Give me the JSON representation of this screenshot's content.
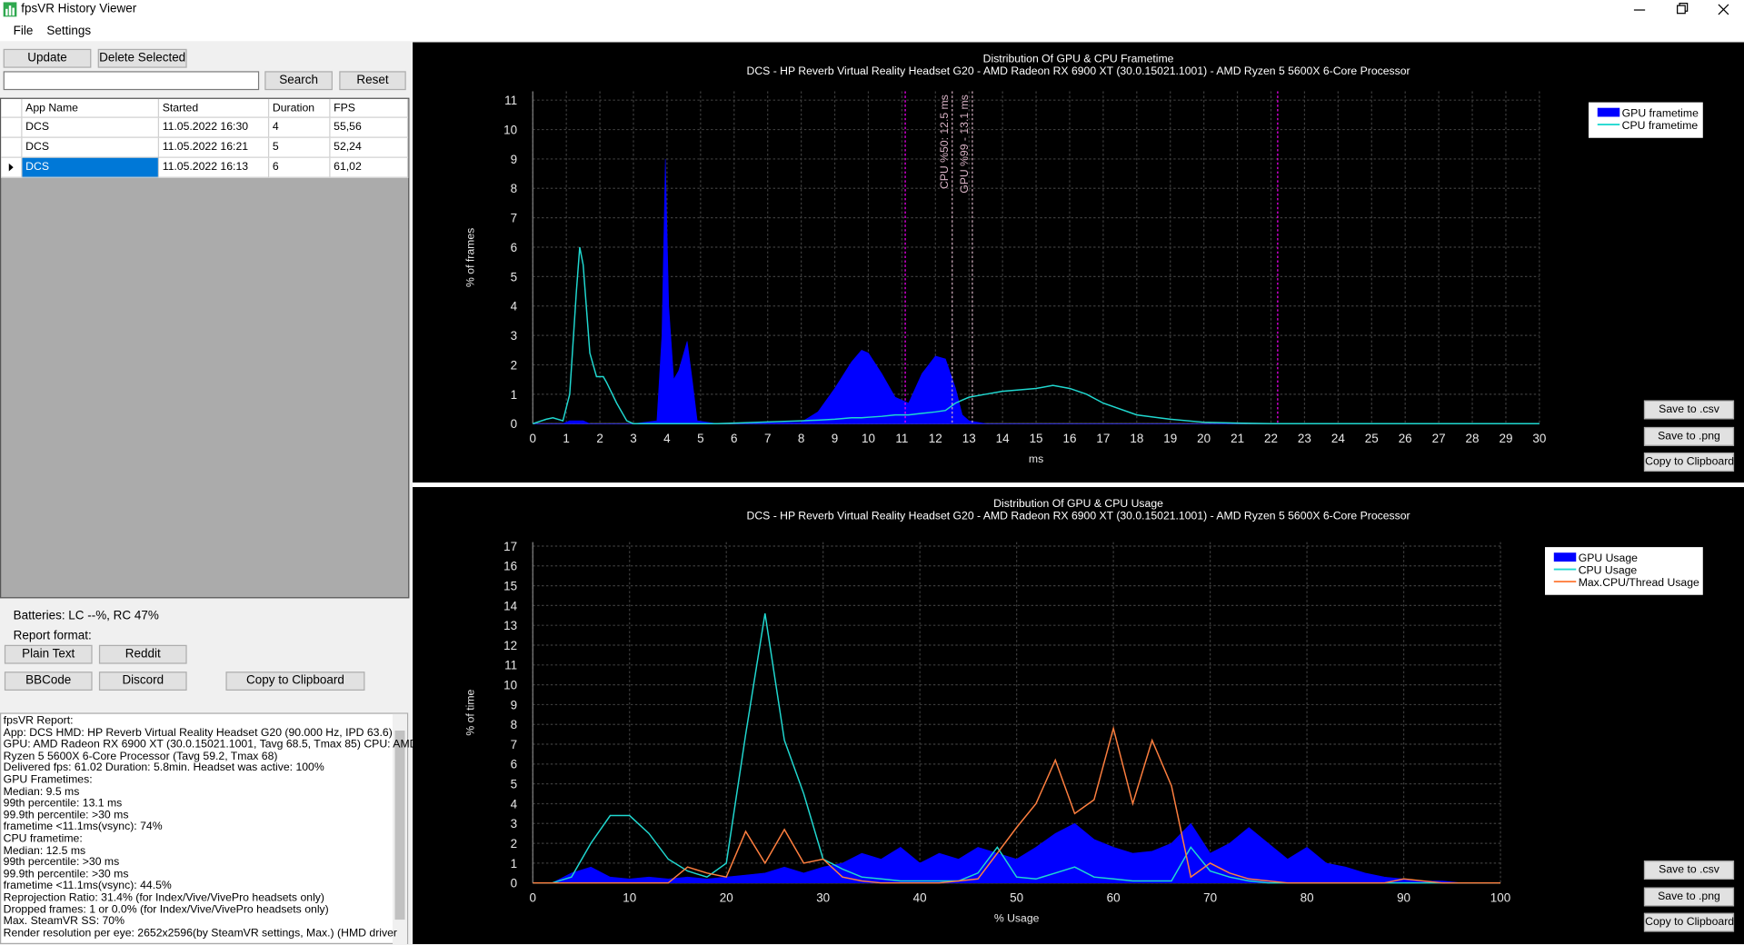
{
  "window": {
    "title": "fpsVR History Viewer",
    "menu": [
      "File",
      "Settings"
    ]
  },
  "toolbar": {
    "update": "Update",
    "delete": "Delete Selected",
    "search": "Search",
    "reset": "Reset"
  },
  "table": {
    "columns": [
      "App Name",
      "Started",
      "Duration",
      "FPS"
    ],
    "rows": [
      [
        "DCS",
        "11.05.2022 16:30",
        "4",
        "55,56"
      ],
      [
        "DCS",
        "11.05.2022 16:21",
        "5",
        "52,24"
      ],
      [
        "DCS",
        "11.05.2022 16:13",
        "6",
        "61,02"
      ]
    ],
    "selected_row": 2
  },
  "batteries": "Batteries: LC --%, RC 47%",
  "report_format": {
    "label": "Report format:",
    "buttons": [
      "Plain Text",
      "Reddit",
      "BBCode",
      "Discord"
    ],
    "copy": "Copy to Clipboard"
  },
  "report": [
    "fpsVR Report:",
    "App: DCS HMD: HP Reverb Virtual Reality Headset G20 (90.000 Hz, IPD 63.6)",
    "GPU: AMD Radeon RX 6900 XT (30.0.15021.1001, Tavg 68.5, Tmax 85) CPU: AMD",
    "Ryzen 5 5600X 6-Core Processor (Tavg 59.2, Tmax 68)",
    "Delivered fps: 61.02  Duration: 5.8min. Headset was active: 100%",
    "GPU Frametimes:",
    "Median: 9.5 ms",
    "99th percentile: 13.1 ms",
    "99.9th percentile: >30 ms",
    "frametime <11.1ms(vsync): 74%",
    "CPU frametime:",
    "Median: 12.5 ms",
    "99th percentile: >30 ms",
    "99.9th percentile: >30 ms",
    "frametime <11.1ms(vsync): 44.5%",
    "Reprojection Ratio: 31.4% (for Index/Vive/VivePro headsets only)",
    "Dropped frames: 1 or 0.0% (for Index/Vive/VivePro headsets only)",
    "Max. SteamVR SS: 70%",
    "Render resolution per eye: 2652x2596(by SteamVR settings, Max.) (HMD driver"
  ],
  "chart_buttons": [
    [
      "Save to .csv",
      "Save to .png",
      "Copy to Clipboard"
    ],
    [
      "Save to .csv",
      "Save to .png",
      "Copy to Clipboard"
    ]
  ],
  "chart_data": [
    {
      "type": "area",
      "title": "Distribution Of GPU & CPU Frametime",
      "subtitle": "DCS - HP Reverb Virtual Reality Headset G20 - AMD Radeon RX 6900 XT (30.0.15021.1001) - AMD Ryzen 5 5600X 6-Core Processor",
      "x_label": "ms",
      "y_label": "% of frames",
      "x": [
        0,
        0.4,
        0.6,
        0.9,
        1.1,
        1.3,
        1.4,
        1.5,
        1.7,
        1.9,
        2.1,
        2.2,
        2.5,
        2.8,
        3,
        3.7,
        3.85,
        3.95,
        4.05,
        4.2,
        4.35,
        4.6,
        4.75,
        4.9,
        5.5,
        8,
        8.5,
        9,
        9.5,
        9.8,
        10,
        10.4,
        10.8,
        11.2,
        11.6,
        12,
        12.3,
        12.6,
        12.8,
        13,
        13.5,
        14,
        15,
        15.5,
        16,
        16.5,
        17,
        18,
        19,
        20,
        21,
        22,
        30
      ],
      "series": [
        {
          "name": "GPU frametime",
          "color": "#0000ff",
          "fill": true,
          "values": [
            0,
            0,
            0,
            0,
            0.1,
            0.1,
            0.1,
            0.1,
            0,
            0,
            0,
            0,
            0,
            0,
            0,
            0.1,
            3,
            9,
            4,
            1.5,
            1.8,
            2.8,
            1.5,
            0.1,
            0,
            0.05,
            0.4,
            1.2,
            2.1,
            2.5,
            2.4,
            1.7,
            0.9,
            0.7,
            1.7,
            2.3,
            2.2,
            1.2,
            0.3,
            0.1,
            0,
            0,
            0,
            0,
            0,
            0,
            0,
            0,
            0,
            0,
            0,
            0,
            0
          ]
        },
        {
          "name": "CPU frametime",
          "color": "#20d8d0",
          "fill": false,
          "values": [
            0,
            0.15,
            0.2,
            0.1,
            1,
            4.5,
            6,
            5.4,
            2.4,
            1.6,
            1.6,
            1.4,
            0.7,
            0.1,
            0,
            0,
            0,
            0,
            0,
            0,
            0,
            0,
            0,
            0,
            0,
            0.1,
            0.12,
            0.15,
            0.2,
            0.2,
            0.22,
            0.25,
            0.3,
            0.3,
            0.35,
            0.4,
            0.45,
            0.7,
            0.8,
            0.9,
            1,
            1.1,
            1.2,
            1.3,
            1.2,
            1,
            0.7,
            0.3,
            0.15,
            0.05,
            0.02,
            0,
            0
          ]
        }
      ],
      "xlim": [
        0,
        30
      ],
      "ylim": [
        0,
        11.3
      ],
      "xticks": [
        0,
        1,
        2,
        3,
        4,
        5,
        6,
        7,
        8,
        9,
        10,
        11,
        12,
        13,
        14,
        15,
        16,
        17,
        18,
        19,
        20,
        21,
        22,
        23,
        24,
        25,
        26,
        27,
        28,
        29,
        30
      ],
      "yticks": [
        0,
        1,
        2,
        3,
        4,
        5,
        6,
        7,
        8,
        9,
        10,
        11
      ],
      "grid": true,
      "legend": "upper right",
      "vlines": [
        {
          "value": 11.1,
          "color": "#ff00ff"
        },
        {
          "value": 22.2,
          "color": "#ff00ff"
        }
      ],
      "annotations": [
        {
          "value": 12.5,
          "label": "CPU %50: 12.5 ms",
          "color": "#d9b3c6"
        },
        {
          "value": 13.1,
          "label": "GPU %99 - 13.1 ms",
          "color": "#d9b3c6"
        }
      ]
    },
    {
      "type": "area",
      "title": "Distribution Of GPU & CPU Usage",
      "subtitle": "DCS - HP Reverb Virtual Reality Headset G20 - AMD Radeon RX 6900 XT (30.0.15021.1001) - AMD Ryzen 5 5600X 6-Core Processor",
      "x_label": "% Usage",
      "y_label": "% of time",
      "x": [
        0,
        2,
        4,
        6,
        8,
        10,
        12,
        14,
        16,
        18,
        20,
        22,
        24,
        26,
        28,
        30,
        32,
        34,
        36,
        38,
        40,
        42,
        44,
        46,
        48,
        50,
        52,
        54,
        56,
        58,
        60,
        62,
        64,
        66,
        68,
        70,
        72,
        74,
        76,
        78,
        80,
        82,
        84,
        86,
        88,
        90,
        92,
        94,
        96,
        98,
        100
      ],
      "series": [
        {
          "name": "GPU Usage",
          "color": "#0000ff",
          "fill": true,
          "values": [
            0,
            0,
            0.5,
            0.8,
            0.3,
            0.2,
            0.3,
            0.2,
            0.3,
            0.2,
            0.3,
            0.4,
            0.5,
            0.8,
            0.5,
            0.8,
            1,
            1.5,
            1.2,
            1.8,
            1,
            1.5,
            1.2,
            1.8,
            1.5,
            1.2,
            1.8,
            2.5,
            3,
            2.2,
            1.8,
            1.5,
            1.6,
            2,
            3,
            1.5,
            2,
            2.8,
            2,
            1.2,
            1.8,
            1,
            0.8,
            0.5,
            0.3,
            0.2,
            0.1,
            0.1,
            0,
            0,
            0
          ]
        },
        {
          "name": "CPU Usage",
          "color": "#20d8d0",
          "fill": false,
          "values": [
            0,
            0,
            0.3,
            2,
            3.4,
            3.4,
            2.5,
            1.2,
            0.6,
            0.3,
            1,
            7.5,
            13.6,
            7.2,
            4.5,
            1.2,
            0.7,
            0.3,
            0.2,
            0.1,
            0.1,
            0.1,
            0.1,
            0.5,
            1.8,
            0.3,
            0.2,
            0.5,
            0.8,
            0.3,
            0.2,
            0.1,
            0.1,
            0.1,
            1.8,
            0.6,
            0.3,
            0.1,
            0,
            0,
            0,
            0,
            0,
            0,
            0,
            0,
            0,
            0,
            0,
            0,
            0
          ]
        },
        {
          "name": "Max.CPU/Thread Usage",
          "color": "#ff7f3f",
          "fill": false,
          "values": [
            0,
            0,
            0,
            0,
            0,
            0,
            0,
            0,
            0.8,
            0.5,
            0.3,
            2.6,
            1,
            2.7,
            1,
            1.2,
            0.3,
            0.1,
            0,
            0,
            0,
            0,
            0.1,
            0.2,
            1.5,
            2.8,
            4,
            6.2,
            3.5,
            4.2,
            7.8,
            4,
            7.2,
            4.9,
            0.3,
            1,
            0.5,
            0.2,
            0.1,
            0,
            0,
            0,
            0,
            0,
            0,
            0.2,
            0.1,
            0,
            0,
            0,
            0
          ]
        }
      ],
      "xlim": [
        0,
        100
      ],
      "ylim": [
        0,
        17.2
      ],
      "xticks": [
        0,
        10,
        20,
        30,
        40,
        50,
        60,
        70,
        80,
        90,
        100
      ],
      "yticks": [
        0,
        1,
        2,
        3,
        4,
        5,
        6,
        7,
        8,
        9,
        10,
        11,
        12,
        13,
        14,
        15,
        16,
        17
      ],
      "grid": true,
      "legend": "upper right"
    }
  ]
}
